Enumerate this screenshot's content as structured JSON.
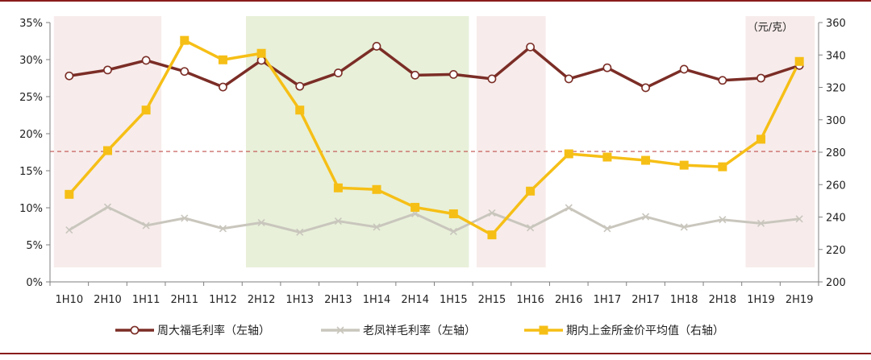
{
  "chart_data": {
    "type": "line",
    "unit_label": "（元/克）",
    "categories": [
      "1H10",
      "2H10",
      "1H11",
      "2H11",
      "1H12",
      "2H12",
      "1H13",
      "2H13",
      "1H14",
      "2H14",
      "1H15",
      "2H15",
      "1H16",
      "2H16",
      "1H17",
      "2H17",
      "1H18",
      "2H18",
      "1H19",
      "2H19"
    ],
    "y_left": {
      "min": 0,
      "max": 35,
      "ticks": [
        "0%",
        "5%",
        "10%",
        "15%",
        "20%",
        "25%",
        "30%",
        "35%"
      ]
    },
    "y_right": {
      "min": 200,
      "max": 360,
      "ticks": [
        "200",
        "220",
        "240",
        "260",
        "280",
        "300",
        "320",
        "340",
        "360"
      ]
    },
    "reference_line_left": 17.6,
    "shaded_regions": [
      {
        "from": "1H10",
        "to": "1H11",
        "color": "#f7eceb"
      },
      {
        "from": "2H12",
        "to": "1H15",
        "color": "#e8f0d9"
      },
      {
        "from": "2H15",
        "to": "1H16",
        "color": "#f7eceb"
      },
      {
        "from": "1H19",
        "to": "2H19",
        "color": "#f7eceb"
      }
    ],
    "series": [
      {
        "name": "周大福毛利率（左轴）",
        "axis": "left",
        "color": "#7b2d26",
        "marker": "circle",
        "values": [
          27.8,
          28.6,
          29.9,
          28.4,
          26.3,
          29.9,
          26.4,
          28.2,
          31.8,
          27.9,
          28.0,
          27.4,
          31.7,
          27.4,
          28.9,
          26.2,
          28.7,
          27.2,
          27.5,
          29.2
        ]
      },
      {
        "name": "老凤祥毛利率（左轴）",
        "axis": "left",
        "color": "#c9c6bd",
        "marker": "x",
        "values": [
          7.0,
          10.1,
          7.6,
          8.6,
          7.2,
          8.0,
          6.7,
          8.2,
          7.4,
          9.2,
          6.8,
          9.3,
          7.3,
          10.0,
          7.2,
          8.8,
          7.4,
          8.4,
          7.9,
          8.5
        ]
      },
      {
        "name": "期内上金所金价平均值（右轴）",
        "axis": "right",
        "color": "#f6bf16",
        "marker": "square",
        "values": [
          254,
          281,
          306,
          349,
          337,
          341,
          306,
          258,
          257,
          246,
          242,
          229,
          256,
          279,
          277,
          275,
          272,
          271,
          288,
          336
        ]
      }
    ],
    "legend_position": "bottom"
  }
}
